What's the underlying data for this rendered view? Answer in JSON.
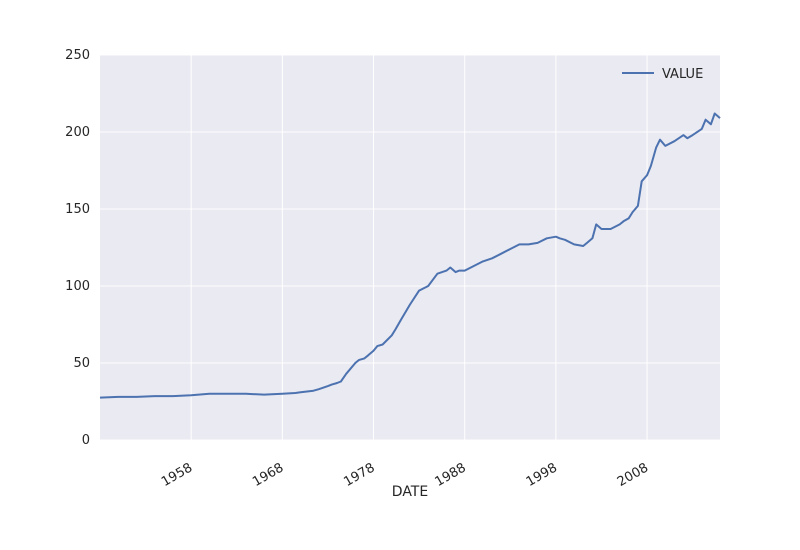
{
  "chart_data": {
    "type": "line",
    "xlabel": "DATE",
    "ylabel": "",
    "title": "",
    "ylim": [
      0,
      250
    ],
    "xlim": [
      "1948-01",
      "2016-01"
    ],
    "yticks": [
      0,
      50,
      100,
      150,
      200,
      250
    ],
    "xticks": [
      "1958",
      "1968",
      "1978",
      "1988",
      "1998",
      "2008"
    ],
    "grid": true,
    "legend_position": "top-right",
    "colors": {
      "plot_background": "#EAEAF2",
      "grid": "#FFFFFF",
      "line": "#4C72B0"
    },
    "series": [
      {
        "name": "VALUE",
        "x": [
          "1948-01",
          "1950-01",
          "1952-01",
          "1954-01",
          "1956-01",
          "1958-01",
          "1960-01",
          "1962-01",
          "1964-01",
          "1966-01",
          "1968-01",
          "1969-06",
          "1970-01",
          "1971-06",
          "1972-01",
          "1973-01",
          "1973-06",
          "1974-01",
          "1974-06",
          "1975-01",
          "1976-01",
          "1976-06",
          "1977-01",
          "1977-06",
          "1978-01",
          "1978-06",
          "1979-01",
          "1980-01",
          "1980-06",
          "1981-01",
          "1982-01",
          "1983-01",
          "1984-01",
          "1985-01",
          "1986-01",
          "1986-06",
          "1987-01",
          "1987-06",
          "1988-01",
          "1989-01",
          "1990-01",
          "1991-01",
          "1992-01",
          "1993-01",
          "1994-01",
          "1995-01",
          "1996-01",
          "1997-01",
          "1998-01",
          "1998-06",
          "1999-01",
          "2000-01",
          "2001-01",
          "2001-06",
          "2002-01",
          "2002-06",
          "2003-01",
          "2004-01",
          "2005-01",
          "2005-06",
          "2006-01",
          "2006-06",
          "2007-01",
          "2007-06",
          "2008-01",
          "2008-06",
          "2009-01",
          "2009-06",
          "2010-01",
          "2011-01",
          "2012-01",
          "2012-06",
          "2013-01",
          "2014-01",
          "2014-06",
          "2015-01",
          "2015-06",
          "2016-01"
        ],
        "values": [
          27.5,
          28,
          28,
          28.5,
          28.5,
          29,
          30,
          30,
          30,
          29.5,
          30,
          30.5,
          31,
          32,
          33,
          35,
          36,
          37,
          38,
          43,
          50,
          52,
          53,
          55,
          58,
          61,
          62,
          68,
          72,
          78,
          88,
          97,
          100,
          108,
          110,
          112,
          109,
          110,
          110,
          113,
          116,
          118,
          121,
          124,
          127,
          127,
          128,
          131,
          132,
          131,
          130,
          127,
          126,
          128,
          131,
          140,
          137,
          137,
          140,
          142,
          144,
          148,
          152,
          168,
          172,
          178,
          190,
          195,
          191,
          194,
          198,
          196,
          198,
          202,
          208,
          205,
          212,
          209
        ]
      }
    ]
  }
}
